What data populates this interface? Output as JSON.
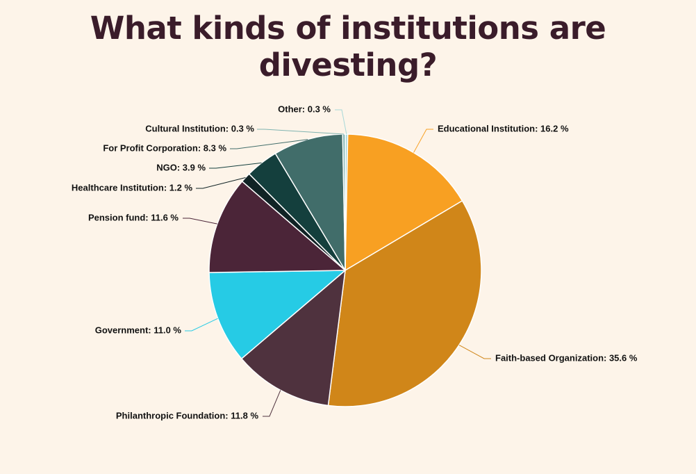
{
  "title": "What kinds of institutions are divesting?",
  "chart_data": {
    "type": "pie",
    "title": "What kinds of institutions are divesting?",
    "unit": "%",
    "slices": [
      {
        "name": "Other",
        "value": 0.3,
        "label": "Other: 0.3 %",
        "color": "#a7d8d8"
      },
      {
        "name": "Educational Institution",
        "value": 16.2,
        "label": "Educational Institution: 16.2 %",
        "color": "#f8a022"
      },
      {
        "name": "Faith-based Organization",
        "value": 35.6,
        "label": "Faith-based Organization: 35.6 %",
        "color": "#d08619"
      },
      {
        "name": "Philanthropic Foundation",
        "value": 11.8,
        "label": "Philanthropic Foundation: 11.8 %",
        "color": "#4f323e"
      },
      {
        "name": "Government",
        "value": 11.0,
        "label": "Government: 11.0 %",
        "color": "#26cbe5"
      },
      {
        "name": "Pension fund",
        "value": 11.6,
        "label": "Pension fund: 11.6 %",
        "color": "#4b2538"
      },
      {
        "name": "Healthcare Institution",
        "value": 1.2,
        "label": "Healthcare Institution: 1.2 %",
        "color": "#102325"
      },
      {
        "name": "NGO",
        "value": 3.9,
        "label": "NGO: 3.9 %",
        "color": "#143f3d"
      },
      {
        "name": "For Profit Corporation",
        "value": 8.3,
        "label": "For Profit Corporation: 8.3 %",
        "color": "#416d6a"
      },
      {
        "name": "Cultural Institution",
        "value": 0.3,
        "label": "Cultural Institution: 0.3 %",
        "color": "#7fb3b0"
      }
    ],
    "legend": "none",
    "data_labels": "outside-with-leader-lines"
  },
  "colors": {
    "background": "#fdf4e9",
    "title": "#3a1c2a",
    "label_text": "#111111"
  }
}
